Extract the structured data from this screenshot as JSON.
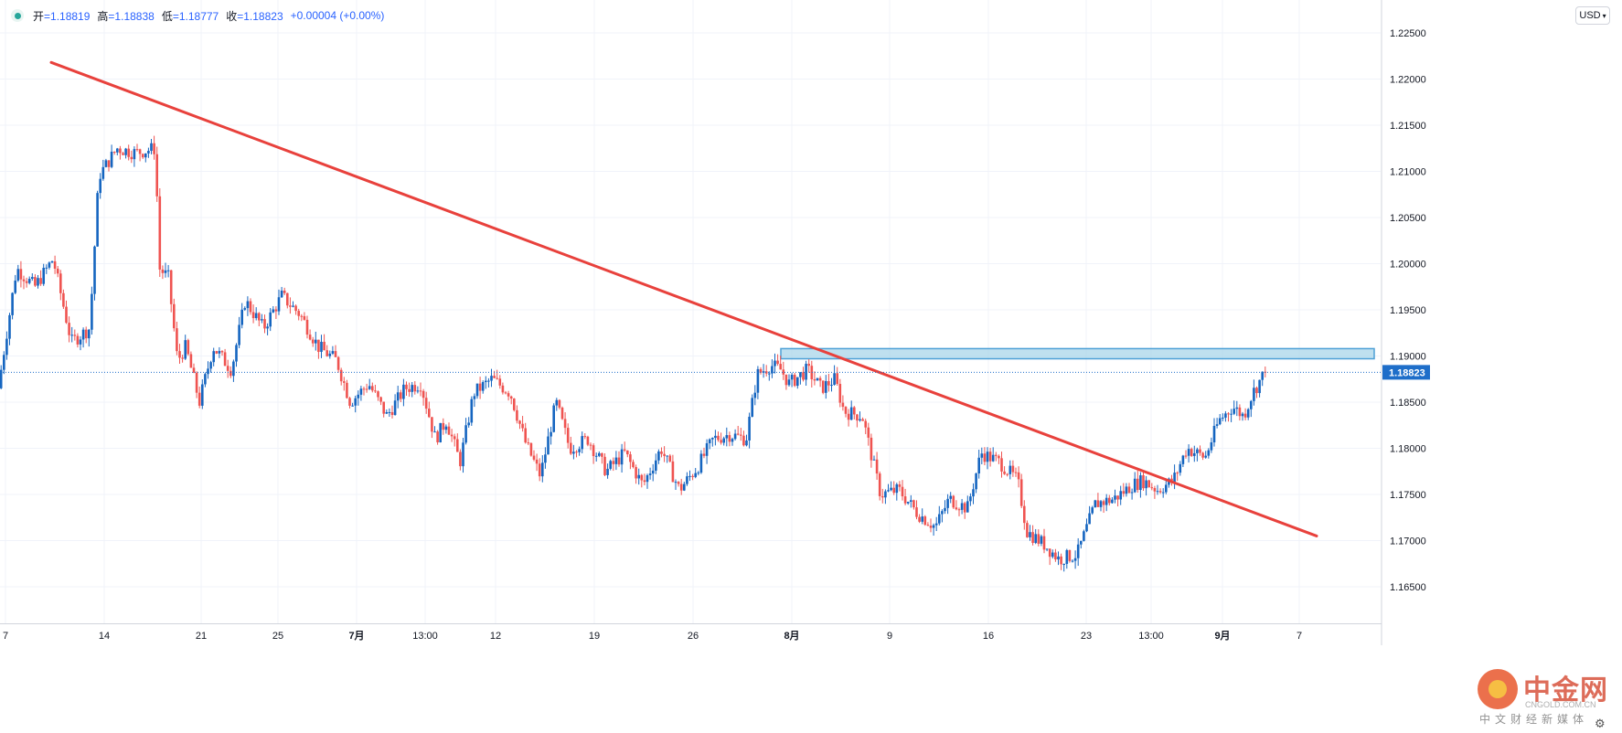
{
  "ohlc": {
    "open_label": "开",
    "open": "=1.18819",
    "high_label": "高",
    "high": "=1.18838",
    "low_label": "低",
    "low": "=1.18777",
    "close_label": "收",
    "close": "=1.18823",
    "change": "+0.00004 (+0.00%)"
  },
  "currency": "USD",
  "watermark": {
    "name": "中金网",
    "url": "CNGOLD.COM.CN",
    "sub": "中文财经新媒体"
  },
  "colors": {
    "up": "#1565c0",
    "down": "#ef5350",
    "trendline": "#e8413c",
    "zone_fill": "#a9d6ea",
    "zone_stroke": "#4ea0d6",
    "price_label": "#1e6ec9"
  },
  "chart_data": {
    "type": "candlestick",
    "y_axis": {
      "min": 1.163,
      "max": 1.2265,
      "ticks": [
        "1.22500",
        "1.22000",
        "1.21500",
        "1.21000",
        "1.20500",
        "1.20000",
        "1.19500",
        "1.19000",
        "1.18500",
        "1.18000",
        "1.17500",
        "1.17000",
        "1.16500"
      ]
    },
    "x_ticks": [
      "7",
      "14",
      "21",
      "25",
      "7月",
      "13:00",
      "12",
      "19",
      "26",
      "8月",
      "9",
      "16",
      "23",
      "13:00",
      "9月",
      "7"
    ],
    "last_price": "1.18823",
    "trendline": {
      "start": {
        "time": 56,
        "price": 1.2218
      },
      "end": {
        "time": 1440,
        "price": 1.1705
      }
    },
    "resistance_zone": {
      "time_from": 854,
      "time_to": 1503,
      "price_top": 1.1908,
      "price_bottom": 1.1897
    },
    "path": [
      [
        0,
        1.1865
      ],
      [
        20,
        1.1995
      ],
      [
        40,
        1.1975
      ],
      [
        60,
        1.2005
      ],
      [
        80,
        1.1915
      ],
      [
        100,
        1.193
      ],
      [
        110,
        1.2095
      ],
      [
        130,
        1.2125
      ],
      [
        150,
        1.212
      ],
      [
        172,
        1.2125
      ],
      [
        176,
        1.1995
      ],
      [
        186,
        1.1985
      ],
      [
        196,
        1.1895
      ],
      [
        205,
        1.191
      ],
      [
        220,
        1.185
      ],
      [
        235,
        1.191
      ],
      [
        255,
        1.1885
      ],
      [
        270,
        1.196
      ],
      [
        290,
        1.193
      ],
      [
        310,
        1.1965
      ],
      [
        330,
        1.1945
      ],
      [
        350,
        1.191
      ],
      [
        370,
        1.1895
      ],
      [
        385,
        1.185
      ],
      [
        405,
        1.187
      ],
      [
        425,
        1.1835
      ],
      [
        445,
        1.1865
      ],
      [
        462,
        1.187
      ],
      [
        478,
        1.181
      ],
      [
        490,
        1.183
      ],
      [
        505,
        1.1785
      ],
      [
        520,
        1.186
      ],
      [
        540,
        1.1875
      ],
      [
        560,
        1.186
      ],
      [
        577,
        1.1805
      ],
      [
        593,
        1.177
      ],
      [
        610,
        1.185
      ],
      [
        625,
        1.18
      ],
      [
        645,
        1.181
      ],
      [
        665,
        1.1775
      ],
      [
        685,
        1.1795
      ],
      [
        705,
        1.176
      ],
      [
        725,
        1.18
      ],
      [
        745,
        1.1755
      ],
      [
        765,
        1.178
      ],
      [
        782,
        1.181
      ],
      [
        800,
        1.1815
      ],
      [
        818,
        1.181
      ],
      [
        830,
        1.188
      ],
      [
        845,
        1.189
      ],
      [
        856,
        1.1885
      ],
      [
        865,
        1.187
      ],
      [
        885,
        1.1885
      ],
      [
        900,
        1.1865
      ],
      [
        915,
        1.1875
      ],
      [
        925,
        1.184
      ],
      [
        945,
        1.1835
      ],
      [
        965,
        1.175
      ],
      [
        985,
        1.1755
      ],
      [
        1005,
        1.173
      ],
      [
        1025,
        1.1715
      ],
      [
        1040,
        1.1745
      ],
      [
        1060,
        1.1735
      ],
      [
        1075,
        1.1795
      ],
      [
        1095,
        1.1785
      ],
      [
        1115,
        1.1765
      ],
      [
        1125,
        1.171
      ],
      [
        1145,
        1.1695
      ],
      [
        1160,
        1.168
      ],
      [
        1180,
        1.1685
      ],
      [
        1200,
        1.174
      ],
      [
        1220,
        1.1745
      ],
      [
        1240,
        1.176
      ],
      [
        1252,
        1.1765
      ],
      [
        1268,
        1.1755
      ],
      [
        1285,
        1.1765
      ],
      [
        1300,
        1.18
      ],
      [
        1320,
        1.179
      ],
      [
        1335,
        1.183
      ],
      [
        1350,
        1.1845
      ],
      [
        1362,
        1.1835
      ],
      [
        1372,
        1.186
      ],
      [
        1385,
        1.1882
      ]
    ]
  }
}
